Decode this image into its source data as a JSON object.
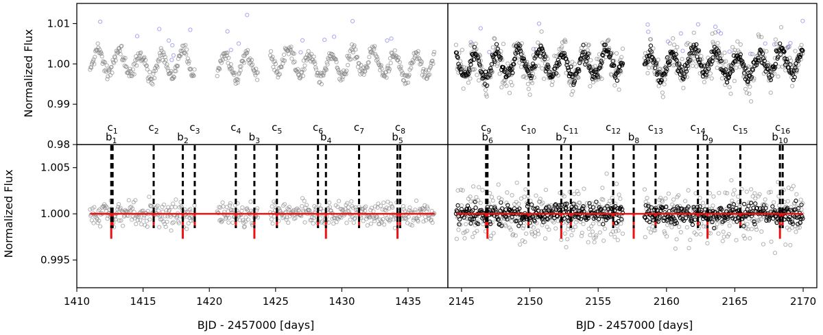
{
  "chart_data": {
    "type": "scatter",
    "title": "",
    "ylabel": "Normalized Flux",
    "xlabel": "BJD - 2457000 [days]",
    "colors": {
      "points": "#7f7f7f",
      "dense_points": "#000000",
      "outliers": "#3a3ad9",
      "model": "#ee1111",
      "markers": "#000000"
    },
    "columns": [
      {
        "name": "sector-a",
        "xlim": [
          1410,
          1438
        ],
        "xticks": [
          "1410",
          "1415",
          "1420",
          "1425",
          "1430",
          "1435"
        ],
        "xtick_values": [
          1410,
          1415,
          1420,
          1425,
          1430,
          1435
        ],
        "data_ranges": [
          [
            1411.0,
            1418.9
          ],
          [
            1420.6,
            1423.7
          ],
          [
            1424.6,
            1437.0
          ]
        ],
        "dense_black": false
      },
      {
        "name": "sector-b",
        "xlim": [
          2144,
          2171
        ],
        "xticks": [
          "2145",
          "2150",
          "2155",
          "2160",
          "2165",
          "2170"
        ],
        "xtick_values": [
          2145,
          2150,
          2155,
          2160,
          2165,
          2170
        ],
        "data_ranges": [
          [
            2144.6,
            2156.8
          ],
          [
            2158.4,
            2170.0
          ]
        ],
        "dense_black": true
      }
    ],
    "top_panel": {
      "ylim": [
        0.98,
        1.015
      ],
      "yticks": [
        "0.98",
        "0.99",
        "1.00",
        "1.01"
      ],
      "ytick_values": [
        0.98,
        0.99,
        1.0,
        1.01
      ],
      "variability_period_days": 1.6,
      "variability_amplitude": 0.003
    },
    "bottom_panel": {
      "ylim": [
        0.992,
        1.0075
      ],
      "yticks": [
        "0.995",
        "1.000",
        "1.005"
      ],
      "ytick_values": [
        0.995,
        1.0,
        1.005
      ],
      "model_level": 1.0,
      "dip_depth_b": 0.0027,
      "dip_depth_c": 0.0015
    },
    "transits_c": [
      {
        "x": 1412.7,
        "label": "c",
        "index": "1"
      },
      {
        "x": 1415.8,
        "label": "c",
        "index": "2"
      },
      {
        "x": 1418.9,
        "label": "c",
        "index": "3"
      },
      {
        "x": 1422.0,
        "label": "c",
        "index": "4"
      },
      {
        "x": 1425.1,
        "label": "c",
        "index": "5"
      },
      {
        "x": 1428.2,
        "label": "c",
        "index": "6"
      },
      {
        "x": 1431.3,
        "label": "c",
        "index": "7"
      },
      {
        "x": 1434.4,
        "label": "c",
        "index": "8"
      },
      {
        "x": 2146.8,
        "label": "c",
        "index": "9"
      },
      {
        "x": 2149.9,
        "label": "c",
        "index": "10"
      },
      {
        "x": 2153.0,
        "label": "c",
        "index": "11"
      },
      {
        "x": 2156.1,
        "label": "c",
        "index": "12"
      },
      {
        "x": 2159.2,
        "label": "c",
        "index": "13"
      },
      {
        "x": 2162.3,
        "label": "c",
        "index": "14"
      },
      {
        "x": 2165.4,
        "label": "c",
        "index": "15"
      },
      {
        "x": 2168.5,
        "label": "c",
        "index": "16"
      }
    ],
    "transits_b": [
      {
        "x": 1412.6,
        "label": "b",
        "index": "1"
      },
      {
        "x": 1418.0,
        "label": "b",
        "index": "2"
      },
      {
        "x": 1423.4,
        "label": "b",
        "index": "3"
      },
      {
        "x": 1428.8,
        "label": "b",
        "index": "4"
      },
      {
        "x": 1434.2,
        "label": "b",
        "index": "5"
      },
      {
        "x": 2146.9,
        "label": "b",
        "index": "6"
      },
      {
        "x": 2152.3,
        "label": "b",
        "index": "7"
      },
      {
        "x": 2157.6,
        "label": "b",
        "index": "8"
      },
      {
        "x": 2163.0,
        "label": "b",
        "index": "9"
      },
      {
        "x": 2168.3,
        "label": "b",
        "index": "10"
      }
    ]
  }
}
